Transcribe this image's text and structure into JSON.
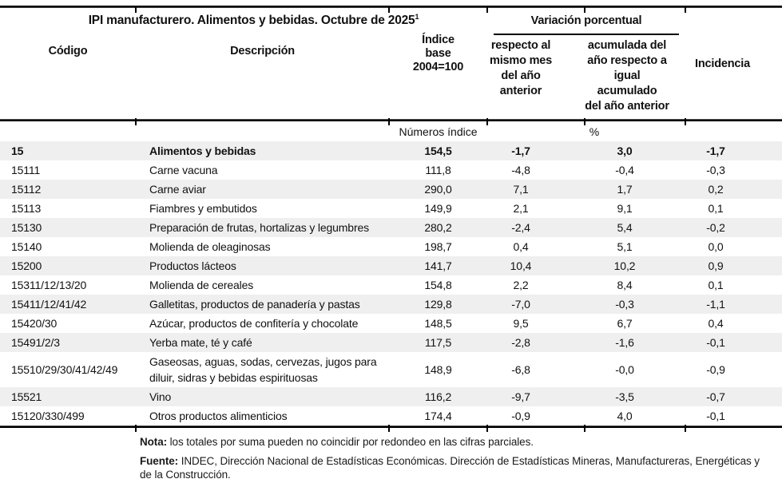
{
  "table": {
    "title": "IPI manufacturero. Alimentos y bebidas. Octubre de 2025",
    "title_superscript": "1",
    "group_header": "Variación porcentual",
    "columns": {
      "codigo": "Código",
      "descripcion": "Descripción",
      "indice_lines": [
        "Índice",
        "base",
        "2004=100"
      ],
      "var_mes_lines": [
        "respecto al",
        "mismo mes",
        "del año",
        "anterior"
      ],
      "var_acum_lines": [
        "acumulada del",
        "año respecto a",
        "igual acumulado",
        "del año anterior"
      ],
      "incidencia": "Incidencia"
    },
    "units": {
      "indice": "Números índice",
      "variacion": "%"
    },
    "rows": [
      {
        "codigo": "15",
        "descripcion": "Alimentos y bebidas",
        "indice": "154,5",
        "var_mes": "-1,7",
        "var_acum": "3,0",
        "incidencia": "-1,7",
        "bold": true
      },
      {
        "codigo": "15111",
        "descripcion": "Carne vacuna",
        "indice": "111,8",
        "var_mes": "-4,8",
        "var_acum": "-0,4",
        "incidencia": "-0,3",
        "bold": false
      },
      {
        "codigo": "15112",
        "descripcion": "Carne aviar",
        "indice": "290,0",
        "var_mes": "7,1",
        "var_acum": "1,7",
        "incidencia": "0,2",
        "bold": false
      },
      {
        "codigo": "15113",
        "descripcion": "Fiambres y embutidos",
        "indice": "149,9",
        "var_mes": "2,1",
        "var_acum": "9,1",
        "incidencia": "0,1",
        "bold": false
      },
      {
        "codigo": "15130",
        "descripcion": "Preparación de frutas, hortalizas y legumbres",
        "indice": "280,2",
        "var_mes": "-2,4",
        "var_acum": "5,4",
        "incidencia": "-0,2",
        "bold": false
      },
      {
        "codigo": "15140",
        "descripcion": "Molienda de oleaginosas",
        "indice": "198,7",
        "var_mes": "0,4",
        "var_acum": "5,1",
        "incidencia": "0,0",
        "bold": false
      },
      {
        "codigo": "15200",
        "descripcion": "Productos lácteos",
        "indice": "141,7",
        "var_mes": "10,4",
        "var_acum": "10,2",
        "incidencia": "0,9",
        "bold": false
      },
      {
        "codigo": "15311/12/13/20",
        "descripcion": "Molienda de cereales",
        "indice": "154,8",
        "var_mes": "2,2",
        "var_acum": "8,4",
        "incidencia": "0,1",
        "bold": false
      },
      {
        "codigo": "15411/12/41/42",
        "descripcion": "Galletitas, productos de panadería y pastas",
        "indice": "129,8",
        "var_mes": "-7,0",
        "var_acum": "-0,3",
        "incidencia": "-1,1",
        "bold": false
      },
      {
        "codigo": "15420/30",
        "descripcion": "Azúcar, productos de confitería y chocolate",
        "indice": "148,5",
        "var_mes": "9,5",
        "var_acum": "6,7",
        "incidencia": "0,4",
        "bold": false
      },
      {
        "codigo": "15491/2/3",
        "descripcion": "Yerba mate, té y café",
        "indice": "117,5",
        "var_mes": "-2,8",
        "var_acum": "-1,6",
        "incidencia": "-0,1",
        "bold": false
      },
      {
        "codigo": "15510/29/30/41/42/49",
        "descripcion": "Gaseosas, aguas, sodas, cervezas, jugos para diluir, sidras y bebidas espirituosas",
        "indice": "148,9",
        "var_mes": "-6,8",
        "var_acum": "-0,0",
        "incidencia": "-0,9",
        "bold": false
      },
      {
        "codigo": "15521",
        "descripcion": "Vino",
        "indice": "116,2",
        "var_mes": "-9,7",
        "var_acum": "-3,5",
        "incidencia": "-0,7",
        "bold": false
      },
      {
        "codigo": "15120/330/499",
        "descripcion": "Otros productos alimenticios",
        "indice": "174,4",
        "var_mes": "-0,9",
        "var_acum": "4,0",
        "incidencia": "-0,1",
        "bold": false
      }
    ]
  },
  "notes": {
    "nota_label": "Nota:",
    "nota_text": " los totales por suma pueden no coincidir por redondeo en las cifras parciales.",
    "fuente_label": "Fuente:",
    "fuente_text": " INDEC, Dirección Nacional de Estadísticas Económicas. Dirección de Estadísticas Mineras, Manufactureras, Energéticas y de la Construcción."
  },
  "colors": {
    "row_shade": "#efefef",
    "rule": "#000000",
    "text": "#111111"
  }
}
